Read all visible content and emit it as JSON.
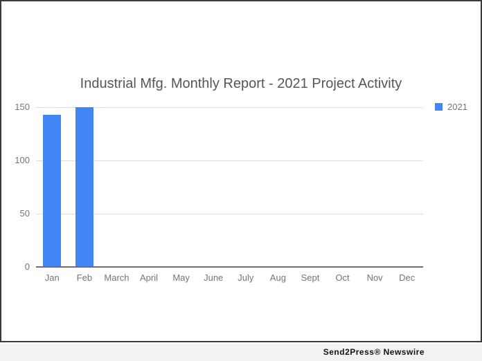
{
  "chart_data": {
    "type": "bar",
    "title": "Industrial Mfg. Monthly Report - 2021 Project Activity",
    "categories": [
      "Jan",
      "Feb",
      "March",
      "April",
      "May",
      "June",
      "July",
      "Aug",
      "Sept",
      "Oct",
      "Nov",
      "Dec"
    ],
    "series": [
      {
        "name": "2021",
        "color": "#4285f4",
        "values": [
          143,
          150,
          0,
          0,
          0,
          0,
          0,
          0,
          0,
          0,
          0,
          0
        ]
      }
    ],
    "xlabel": "",
    "ylabel": "",
    "ylim": [
      0,
      150
    ],
    "yticks": [
      0,
      50,
      100,
      150
    ],
    "grid": true,
    "legend_position": "right",
    "title_color": "#565656",
    "axis_label_color": "#757575"
  },
  "footer": {
    "brand": "Send2Press® Newswire"
  }
}
